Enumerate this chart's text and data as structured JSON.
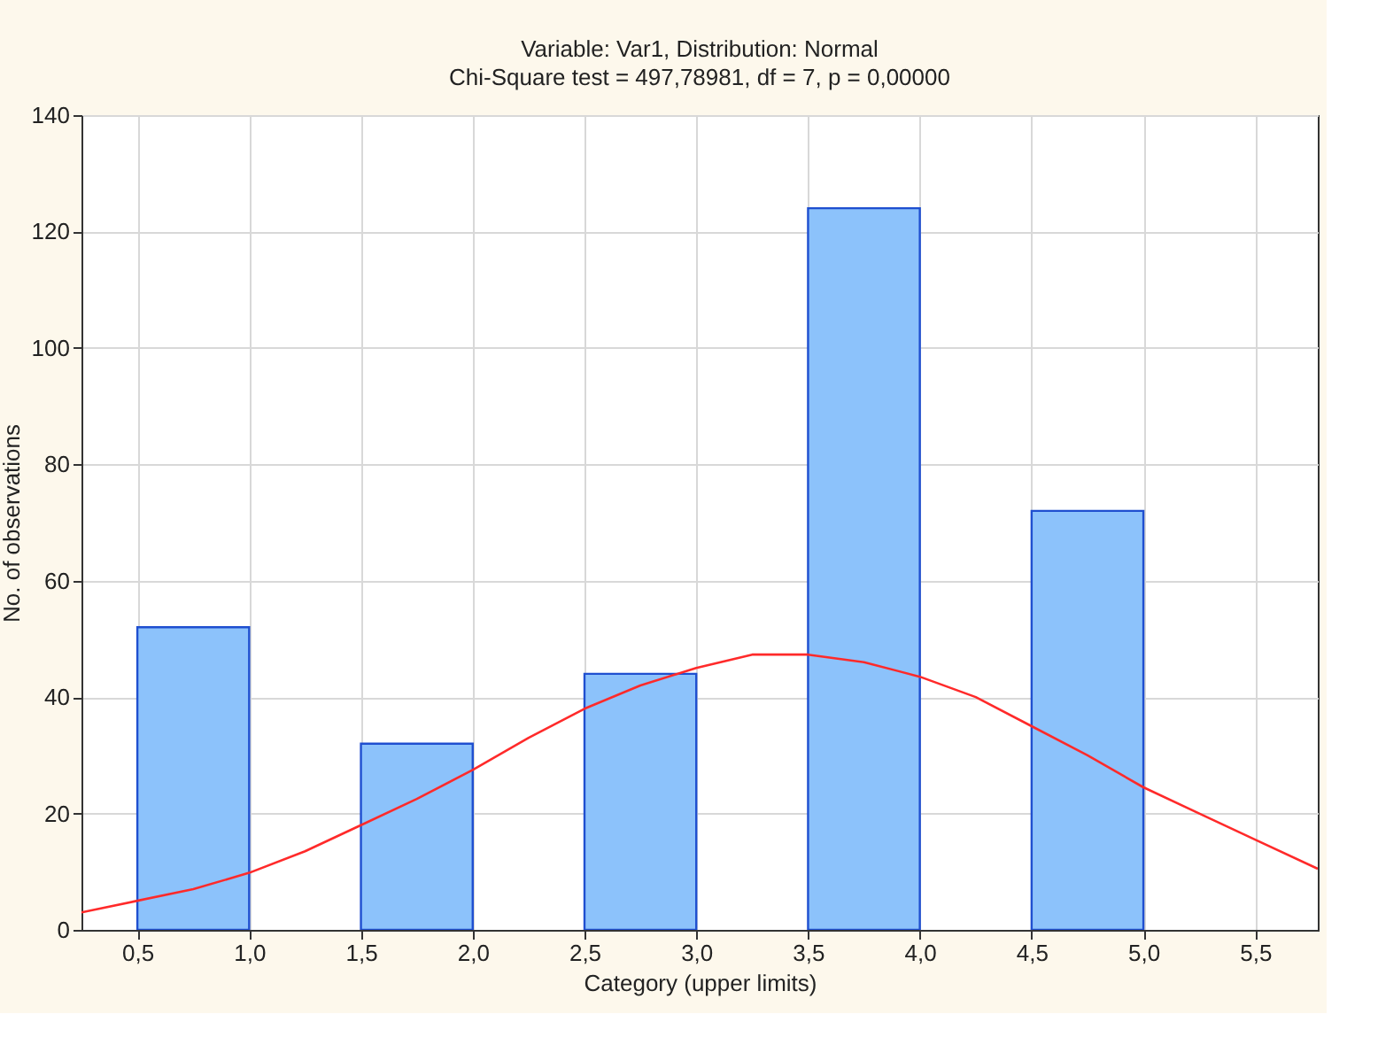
{
  "chart_data": {
    "type": "histogram",
    "title": "Variable: Var1, Distribution: Normal",
    "subtitle": "Chi-Square test = 497,78981, df = 7, p = 0,00000",
    "xlabel": "Category (upper limits)",
    "ylabel": "No. of observations",
    "bins": [
      0.5,
      1.0,
      1.5,
      2.0,
      2.5,
      3.0,
      3.5,
      4.0,
      4.5,
      5.0
    ],
    "values": [
      52,
      0,
      32,
      0,
      44,
      0,
      124,
      0,
      72
    ],
    "color": "#8cc2fb",
    "series": [
      {
        "type": "line",
        "color": "#ff2a2a",
        "x": [
          0.25,
          0.5,
          0.75,
          1.0,
          1.25,
          1.5,
          1.75,
          2.0,
          2.25,
          2.5,
          2.75,
          3.0,
          3.25,
          3.5,
          3.75,
          4.0,
          4.25,
          4.5,
          4.75,
          5.0,
          5.25,
          5.5,
          5.78
        ],
        "values": [
          3,
          5,
          7,
          9.8,
          13.5,
          18,
          22.5,
          27.5,
          33,
          38,
          42,
          45,
          47.3,
          47.3,
          46,
          43.5,
          40,
          35,
          30,
          24.5,
          20,
          15.5,
          10.5
        ]
      }
    ],
    "xlim": [
      0.25,
      5.78
    ],
    "xticks": [
      {
        "value": 0.5,
        "label": "0,5"
      },
      {
        "value": 1.0,
        "label": "1,0"
      },
      {
        "value": 1.5,
        "label": "1,5"
      },
      {
        "value": 2.0,
        "label": "2,0"
      },
      {
        "value": 2.5,
        "label": "2,5"
      },
      {
        "value": 3.0,
        "label": "3,0"
      },
      {
        "value": 3.5,
        "label": "3,5"
      },
      {
        "value": 4.0,
        "label": "4,0"
      },
      {
        "value": 4.5,
        "label": "4,5"
      },
      {
        "value": 5.0,
        "label": "5,0"
      },
      {
        "value": 5.5,
        "label": "5,5"
      }
    ],
    "ylim": [
      0,
      140
    ],
    "yticks": [
      0,
      20,
      40,
      60,
      80,
      100,
      120,
      140
    ],
    "grid": true
  }
}
